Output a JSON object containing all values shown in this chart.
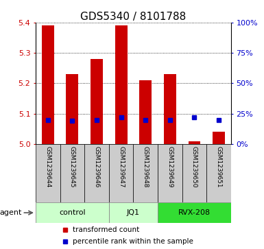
{
  "title": "GDS5340 / 8101788",
  "samples": [
    "GSM1239644",
    "GSM1239645",
    "GSM1239646",
    "GSM1239647",
    "GSM1239648",
    "GSM1239649",
    "GSM1239650",
    "GSM1239651"
  ],
  "red_values": [
    5.39,
    5.23,
    5.28,
    5.39,
    5.21,
    5.23,
    5.01,
    5.04
  ],
  "blue_values_pct": [
    20,
    19,
    20,
    22,
    20,
    20,
    22,
    20
  ],
  "ylim_left": [
    5.0,
    5.4
  ],
  "ylim_right": [
    0,
    100
  ],
  "yticks_left": [
    5.0,
    5.1,
    5.2,
    5.3,
    5.4
  ],
  "yticks_right": [
    0,
    25,
    50,
    75,
    100
  ],
  "ytick_labels_right": [
    "0%",
    "25%",
    "50%",
    "75%",
    "100%"
  ],
  "groups": [
    {
      "label": "control",
      "start": 0,
      "end": 2,
      "color": "#ccffcc"
    },
    {
      "label": "JQ1",
      "start": 3,
      "end": 4,
      "color": "#ccffcc"
    },
    {
      "label": "RVX-208",
      "start": 5,
      "end": 7,
      "color": "#33dd33"
    }
  ],
  "agent_label": "agent",
  "bar_color": "#cc0000",
  "dot_color": "#0000cc",
  "bar_width": 0.5,
  "legend_red": "transformed count",
  "legend_blue": "percentile rank within the sample",
  "bg_color": "#ffffff",
  "sample_bg": "#cccccc",
  "title_fontsize": 11,
  "tick_fontsize": 8,
  "sample_fontsize": 6.5,
  "group_fontsize": 8,
  "legend_fontsize": 7.5
}
